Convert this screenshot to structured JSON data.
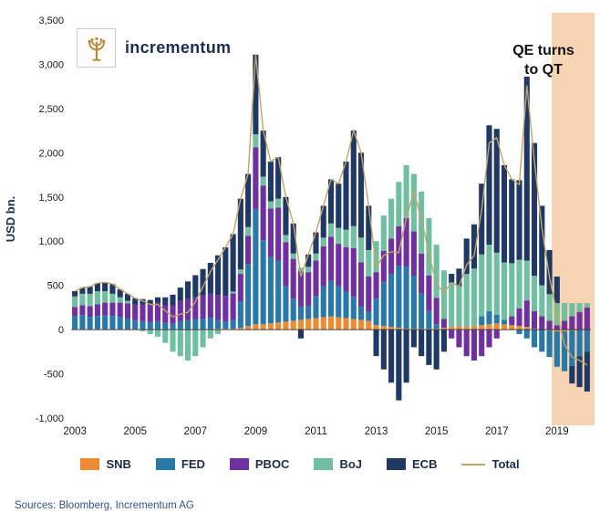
{
  "header": {
    "brand": "incrementum"
  },
  "annotation": {
    "line1": "QE turns",
    "line2": "to QT"
  },
  "y_axis": {
    "label": "USD bn.",
    "ticks": [
      {
        "value": 3500,
        "label": "3,500"
      },
      {
        "value": 3000,
        "label": "3,000"
      },
      {
        "value": 2500,
        "label": "2,500"
      },
      {
        "value": 2000,
        "label": "2,000"
      },
      {
        "value": 1500,
        "label": "1,500"
      },
      {
        "value": 1000,
        "label": "1,000"
      },
      {
        "value": 500,
        "label": "500"
      },
      {
        "value": 0,
        "label": "0"
      },
      {
        "value": -500,
        "label": "-500"
      },
      {
        "value": -1000,
        "label": "-1,000"
      }
    ]
  },
  "x_axis": {
    "ticks": [
      {
        "year": 2003,
        "label": "2003"
      },
      {
        "year": 2005,
        "label": "2005"
      },
      {
        "year": 2007,
        "label": "2007"
      },
      {
        "year": 2009,
        "label": "2009"
      },
      {
        "year": 2011,
        "label": "2011"
      },
      {
        "year": 2013,
        "label": "2013"
      },
      {
        "year": 2015,
        "label": "2015"
      },
      {
        "year": 2017,
        "label": "2017"
      },
      {
        "year": 2019,
        "label": "2019"
      }
    ]
  },
  "legend": [
    {
      "label": "SNB",
      "color": "#ED8B33",
      "swatch": "box"
    },
    {
      "label": "FED",
      "color": "#2879A8",
      "swatch": "box"
    },
    {
      "label": "PBOC",
      "color": "#7030A0",
      "swatch": "box"
    },
    {
      "label": "BoJ",
      "color": "#70BFA1",
      "swatch": "box"
    },
    {
      "label": "ECB",
      "color": "#203864",
      "swatch": "box"
    },
    {
      "label": "Total",
      "color": "#C0A468",
      "swatch": "line"
    }
  ],
  "footer": {
    "sources": "Sources: Bloomberg, Incrementum AG"
  },
  "chart_data": {
    "type": "bar",
    "stacked": true,
    "title": "",
    "ylabel": "USD bn.",
    "ylim": [
      -1000,
      3500
    ],
    "grid": false,
    "legend_position": "bottom",
    "x_start": 2003.0,
    "x_step": 0.25,
    "highlight_region": {
      "x_from": 2018.95,
      "x_to": 2020.6,
      "color": "#F6CFAC",
      "label": "QE turns to QT"
    },
    "total_line": {
      "name": "Total",
      "color": "#C0A468"
    },
    "series": [
      {
        "name": "SNB",
        "color": "#ED8B33",
        "values": [
          5,
          5,
          5,
          5,
          5,
          5,
          5,
          5,
          5,
          5,
          5,
          5,
          5,
          5,
          5,
          5,
          5,
          5,
          5,
          10,
          10,
          10,
          20,
          40,
          60,
          60,
          70,
          80,
          90,
          100,
          110,
          120,
          130,
          140,
          150,
          140,
          130,
          120,
          110,
          100,
          50,
          40,
          30,
          20,
          10,
          10,
          10,
          10,
          10,
          20,
          30,
          40,
          30,
          40,
          50,
          60,
          70,
          60,
          50,
          40,
          30,
          10,
          0,
          -10,
          -20,
          -20,
          -10,
          0,
          0
        ]
      },
      {
        "name": "FED",
        "color": "#2879A8",
        "values": [
          150,
          160,
          140,
          150,
          160,
          150,
          140,
          120,
          100,
          90,
          80,
          90,
          70,
          60,
          90,
          100,
          110,
          120,
          130,
          100,
          80,
          100,
          300,
          700,
          1300,
          950,
          750,
          700,
          400,
          250,
          150,
          150,
          250,
          350,
          400,
          350,
          300,
          250,
          150,
          100,
          300,
          500,
          600,
          700,
          700,
          600,
          400,
          200,
          50,
          0,
          0,
          0,
          0,
          0,
          100,
          150,
          100,
          50,
          0,
          -50,
          -100,
          -200,
          -250,
          -300,
          -400,
          -450,
          -400,
          -300,
          -250
        ]
      },
      {
        "name": "PBOC",
        "color": "#7030A0",
        "values": [
          100,
          110,
          120,
          130,
          140,
          150,
          160,
          170,
          180,
          190,
          200,
          210,
          200,
          210,
          230,
          240,
          250,
          260,
          270,
          280,
          290,
          300,
          310,
          320,
          700,
          620,
          550,
          600,
          500,
          450,
          400,
          380,
          400,
          450,
          500,
          480,
          500,
          550,
          500,
          400,
          300,
          350,
          400,
          450,
          550,
          500,
          450,
          400,
          300,
          100,
          -100,
          -200,
          -300,
          -350,
          -300,
          -200,
          -100,
          0,
          100,
          200,
          300,
          200,
          150,
          100,
          50,
          100,
          150,
          200,
          250
        ]
      },
      {
        "name": "BoJ",
        "color": "#70BFA1",
        "values": [
          120,
          130,
          140,
          150,
          130,
          100,
          60,
          30,
          0,
          -20,
          -50,
          -80,
          -150,
          -250,
          -300,
          -350,
          -300,
          -200,
          -100,
          -50,
          0,
          20,
          50,
          100,
          150,
          100,
          80,
          100,
          80,
          60,
          40,
          60,
          80,
          100,
          150,
          180,
          200,
          250,
          280,
          300,
          350,
          400,
          450,
          500,
          600,
          650,
          700,
          650,
          600,
          550,
          500,
          450,
          600,
          650,
          700,
          750,
          700,
          650,
          600,
          550,
          450,
          400,
          350,
          300,
          250,
          200,
          150,
          100,
          50
        ]
      },
      {
        "name": "ECB",
        "color": "#203864",
        "values": [
          60,
          70,
          80,
          90,
          100,
          110,
          90,
          80,
          70,
          60,
          50,
          60,
          90,
          120,
          150,
          200,
          250,
          300,
          350,
          450,
          550,
          650,
          800,
          600,
          900,
          520,
          450,
          470,
          430,
          340,
          -100,
          140,
          240,
          360,
          500,
          500,
          770,
          1080,
          960,
          500,
          -300,
          -450,
          -600,
          -800,
          -600,
          -200,
          -300,
          -400,
          -450,
          -250,
          100,
          200,
          400,
          500,
          800,
          1350,
          1400,
          1100,
          950,
          900,
          2080,
          1500,
          900,
          500,
          300,
          0,
          -200,
          -350,
          -450
        ]
      }
    ]
  }
}
